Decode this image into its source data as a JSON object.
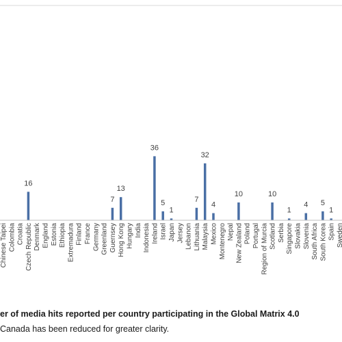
{
  "chart_data": {
    "type": "bar",
    "categories": [
      "Chinese Taipei",
      "Colombia",
      "Croatia",
      "Czech Republic",
      "Denmark",
      "England",
      "Estonia",
      "Ethiopia",
      "Extremadura",
      "Finland",
      "France",
      "Germany",
      "Greenland",
      "Guernsey",
      "Hong Kong",
      "Hungary",
      "India",
      "Indonesia",
      "Ireland",
      "Israel",
      "Japan",
      "Jersey",
      "Lebanon",
      "Lithuania",
      "Malaysia",
      "Mexico",
      "Montenegro",
      "Nepal",
      "New Zealand",
      "Poland",
      "Portugal",
      "Region of Murcia",
      "Scotland",
      "Serbia",
      "Singapore",
      "Slovakia",
      "Slovenia",
      "South Africa",
      "South Korea",
      "Spain",
      "Sweden"
    ],
    "values": [
      0,
      0,
      0,
      16,
      0,
      0,
      0,
      0,
      0,
      0,
      0,
      0,
      0,
      7,
      13,
      0,
      0,
      0,
      36,
      5,
      1,
      0,
      0,
      7,
      32,
      4,
      0,
      0,
      10,
      0,
      0,
      0,
      10,
      0,
      1,
      0,
      4,
      0,
      5,
      1,
      0
    ],
    "labels": [
      "",
      "",
      "",
      "16",
      "",
      "",
      "",
      "",
      "",
      "",
      "",
      "",
      "",
      "7",
      "13",
      "",
      "",
      "",
      "36",
      "5",
      "1",
      "",
      "",
      "7",
      "32",
      "4",
      "",
      "",
      "10",
      "",
      "",
      "",
      "10",
      "",
      "1",
      "",
      "4",
      "",
      "5",
      "1",
      ""
    ],
    "bar_color": "#4a6fa5",
    "axis_color": "#bfbfbf",
    "ylim": [
      0,
      40
    ],
    "grid": false,
    "legend": "none",
    "title": "",
    "xlabel": "",
    "ylabel": ""
  },
  "caption": {
    "line1": "er of media hits reported per country participating in the Global Matrix 4.0",
    "line2": "Canada has been reduced for greater clarity."
  }
}
